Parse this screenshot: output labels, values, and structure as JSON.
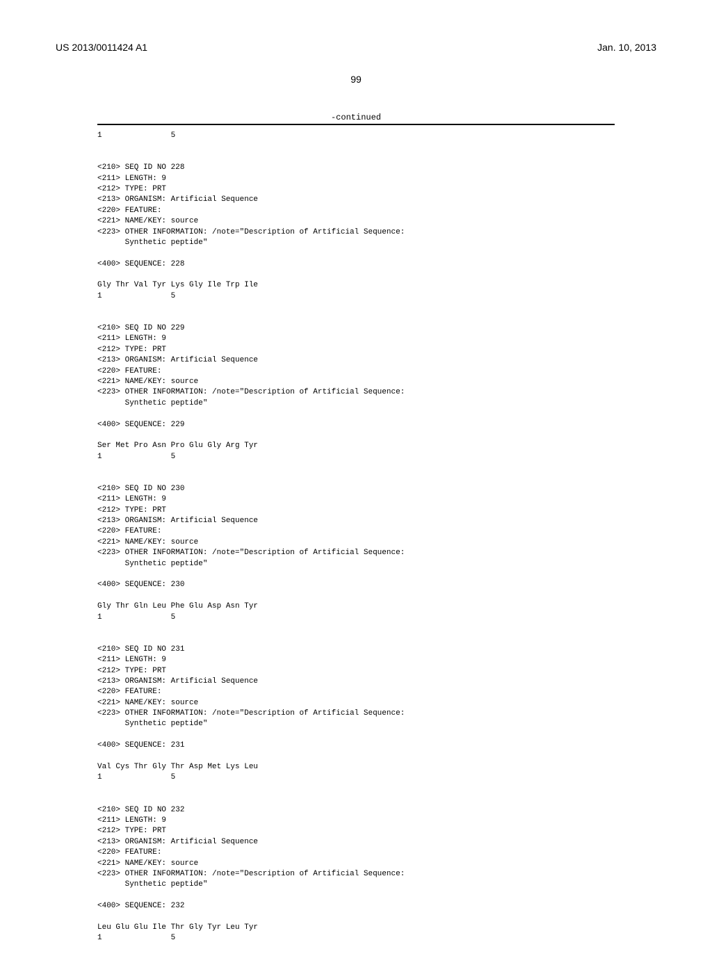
{
  "header": {
    "pub_number": "US 2013/0011424 A1",
    "date": "Jan. 10, 2013"
  },
  "page_number": "99",
  "continued": "-continued",
  "seq_header_numbers": "1               5",
  "entries": [
    {
      "lines": [
        "<210> SEQ ID NO 228",
        "<211> LENGTH: 9",
        "<212> TYPE: PRT",
        "<213> ORGANISM: Artificial Sequence",
        "<220> FEATURE:",
        "<221> NAME/KEY: source",
        "<223> OTHER INFORMATION: /note=\"Description of Artificial Sequence:",
        "      Synthetic peptide\""
      ],
      "seq_label": "<400> SEQUENCE: 228",
      "sequence": "Gly Thr Val Tyr Lys Gly Ile Trp Ile",
      "numbers": "1               5"
    },
    {
      "lines": [
        "<210> SEQ ID NO 229",
        "<211> LENGTH: 9",
        "<212> TYPE: PRT",
        "<213> ORGANISM: Artificial Sequence",
        "<220> FEATURE:",
        "<221> NAME/KEY: source",
        "<223> OTHER INFORMATION: /note=\"Description of Artificial Sequence:",
        "      Synthetic peptide\""
      ],
      "seq_label": "<400> SEQUENCE: 229",
      "sequence": "Ser Met Pro Asn Pro Glu Gly Arg Tyr",
      "numbers": "1               5"
    },
    {
      "lines": [
        "<210> SEQ ID NO 230",
        "<211> LENGTH: 9",
        "<212> TYPE: PRT",
        "<213> ORGANISM: Artificial Sequence",
        "<220> FEATURE:",
        "<221> NAME/KEY: source",
        "<223> OTHER INFORMATION: /note=\"Description of Artificial Sequence:",
        "      Synthetic peptide\""
      ],
      "seq_label": "<400> SEQUENCE: 230",
      "sequence": "Gly Thr Gln Leu Phe Glu Asp Asn Tyr",
      "numbers": "1               5"
    },
    {
      "lines": [
        "<210> SEQ ID NO 231",
        "<211> LENGTH: 9",
        "<212> TYPE: PRT",
        "<213> ORGANISM: Artificial Sequence",
        "<220> FEATURE:",
        "<221> NAME/KEY: source",
        "<223> OTHER INFORMATION: /note=\"Description of Artificial Sequence:",
        "      Synthetic peptide\""
      ],
      "seq_label": "<400> SEQUENCE: 231",
      "sequence": "Val Cys Thr Gly Thr Asp Met Lys Leu",
      "numbers": "1               5"
    },
    {
      "lines": [
        "<210> SEQ ID NO 232",
        "<211> LENGTH: 9",
        "<212> TYPE: PRT",
        "<213> ORGANISM: Artificial Sequence",
        "<220> FEATURE:",
        "<221> NAME/KEY: source",
        "<223> OTHER INFORMATION: /note=\"Description of Artificial Sequence:",
        "      Synthetic peptide\""
      ],
      "seq_label": "<400> SEQUENCE: 232",
      "sequence": "Leu Glu Glu Ile Thr Gly Tyr Leu Tyr",
      "numbers": "1               5"
    }
  ]
}
